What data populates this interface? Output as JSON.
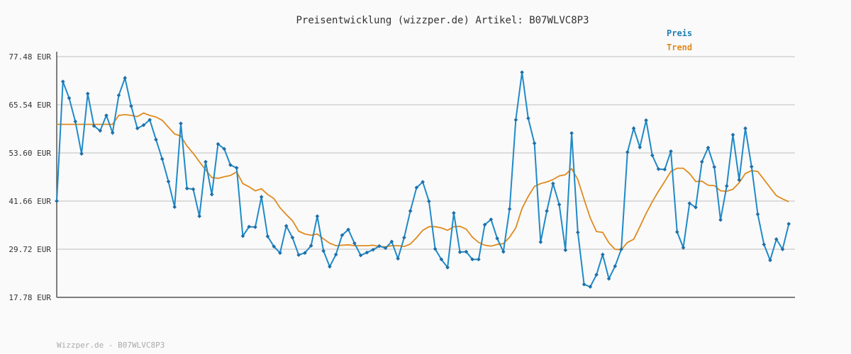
{
  "chart_data": {
    "type": "line",
    "title": "Preisentwicklung (wizzper.de) Artikel: B07WLVC8P3",
    "y_ticks": [
      "77.48 EUR",
      "65.54 EUR",
      "53.60 EUR",
      "41.66 EUR",
      "29.72 EUR",
      "17.78 EUR"
    ],
    "ylim": [
      17.78,
      77.48
    ],
    "grid": true,
    "legend_position": "top-right",
    "series": [
      {
        "name": "Preis",
        "color": "#1f8ac8",
        "values": [
          41.66,
          71.3,
          67.2,
          61.4,
          53.4,
          68.3,
          60.3,
          59.1,
          62.9,
          58.6,
          67.9,
          72.2,
          65.2,
          59.7,
          60.5,
          61.8,
          56.9,
          52.1,
          46.5,
          40.2,
          60.9,
          44.8,
          44.6,
          37.9,
          51.4,
          43.3,
          55.8,
          54.6,
          50.6,
          49.9,
          33.0,
          35.3,
          35.2,
          42.7,
          32.9,
          30.4,
          28.8,
          35.5,
          32.6,
          28.3,
          28.8,
          30.6,
          37.9,
          29.3,
          25.4,
          28.4,
          33.2,
          34.6,
          31.2,
          28.2,
          28.9,
          29.6,
          30.5,
          30.0,
          31.6,
          27.4,
          32.6,
          39.2,
          45.0,
          46.4,
          41.6,
          29.8,
          27.2,
          25.2,
          38.7,
          29.0,
          29.1,
          27.2,
          27.2,
          35.8,
          37.1,
          32.4,
          29.1,
          39.7,
          61.8,
          73.6,
          62.2,
          56.0,
          31.5,
          39.2,
          46.0,
          40.8,
          29.5,
          58.5,
          33.9,
          21.0,
          20.4,
          23.4,
          28.4,
          22.4,
          25.5,
          29.7,
          53.8,
          59.7,
          55.0,
          61.7,
          53.0,
          49.6,
          49.5,
          54.0,
          34.0,
          30.1,
          41.1,
          40.1,
          51.4,
          54.9,
          50.1,
          37.0,
          45.4,
          58.1,
          46.9,
          59.7,
          50.2,
          38.4,
          30.9,
          27.0,
          32.2,
          29.7,
          36.0
        ],
        "bins": 120
      },
      {
        "name": "Trend",
        "color": "#e08a1e",
        "values": [
          60.7,
          60.7,
          60.7,
          60.7,
          60.7,
          60.7,
          60.7,
          60.7,
          60.7,
          60.7,
          62.9,
          63.1,
          62.9,
          62.6,
          63.5,
          62.9,
          62.5,
          61.7,
          60.0,
          58.3,
          57.8,
          55.3,
          53.5,
          51.4,
          49.4,
          47.5,
          47.3,
          47.7,
          48.0,
          48.9,
          46.0,
          45.2,
          44.2,
          44.7,
          43.3,
          42.3,
          40.0,
          38.3,
          36.8,
          34.2,
          33.5,
          33.2,
          33.5,
          32.3,
          31.2,
          30.6,
          30.7,
          30.8,
          30.6,
          30.6,
          30.6,
          30.7,
          30.4,
          30.3,
          30.6,
          30.6,
          30.4,
          31.0,
          32.6,
          34.4,
          35.3,
          35.3,
          35.0,
          34.4,
          35.3,
          35.4,
          34.7,
          32.7,
          31.4,
          30.7,
          30.5,
          30.9,
          31.1,
          32.7,
          35.0,
          39.8,
          42.8,
          45.3,
          46.0,
          46.4,
          47.0,
          47.9,
          48.2,
          49.7,
          47.0,
          42.1,
          37.5,
          34.1,
          33.9,
          31.3,
          29.7,
          29.6,
          31.4,
          32.2,
          35.3,
          38.6,
          41.5,
          44.1,
          46.5,
          49.0,
          49.8,
          49.8,
          48.5,
          46.5,
          46.6,
          45.6,
          45.5,
          44.2,
          44.1,
          44.6,
          46.2,
          48.5,
          49.2,
          49.0,
          47.0,
          45.0,
          43.0,
          42.2,
          41.5
        ],
        "bins": 120
      }
    ],
    "footer": "Wizzper.de - B07WLVC8P3"
  }
}
